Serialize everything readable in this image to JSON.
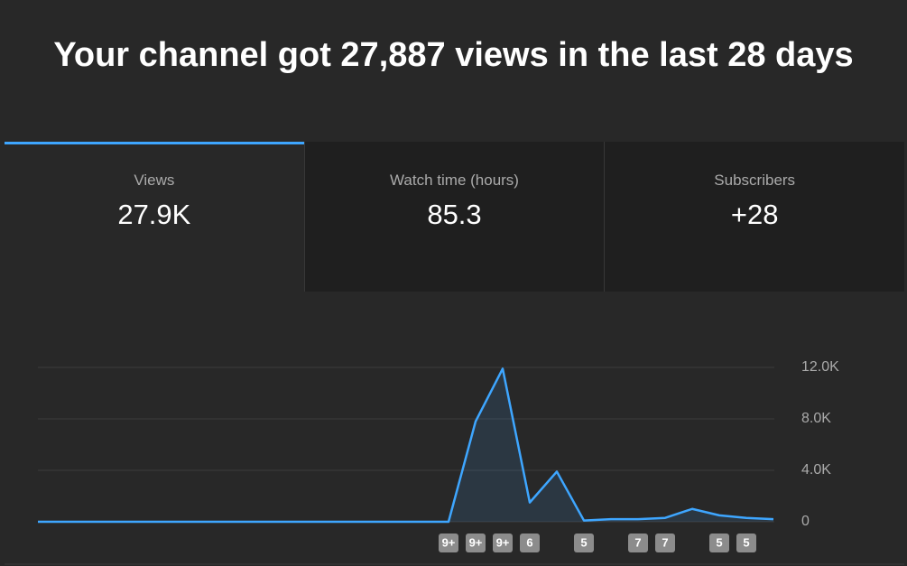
{
  "header": {
    "title": "Your channel got 27,887 views in the last 28 days"
  },
  "tabs": [
    {
      "label": "Views",
      "value": "27.9K"
    },
    {
      "label": "Watch time (hours)",
      "value": "85.3"
    },
    {
      "label": "Subscribers",
      "value": "+28"
    }
  ],
  "chart_data": {
    "type": "area",
    "values": [
      0,
      0,
      0,
      0,
      0,
      0,
      0,
      0,
      0,
      0,
      0,
      0,
      0,
      0,
      0,
      0,
      7800,
      11900,
      1500,
      3900,
      100,
      200,
      200,
      300,
      1000,
      500,
      300,
      200
    ],
    "markers": [
      null,
      null,
      null,
      null,
      null,
      null,
      null,
      null,
      null,
      null,
      null,
      null,
      null,
      null,
      null,
      "9+",
      "9+",
      "9+",
      "6",
      null,
      "5",
      null,
      "7",
      "7",
      null,
      "5",
      "5",
      null
    ],
    "color": "#3ea6ff",
    "ylim": [
      0,
      12000
    ],
    "yticks": [
      0,
      {
        "value": 4000,
        "label": "4.0K"
      },
      {
        "value": 8000,
        "label": "8.0K"
      },
      {
        "value": 12000,
        "label": "12.0K"
      }
    ],
    "grid": true
  }
}
